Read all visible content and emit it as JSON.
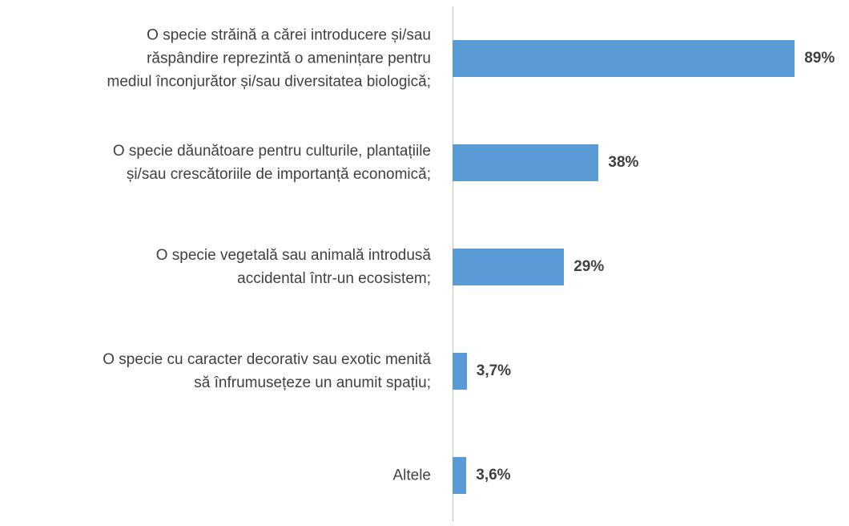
{
  "chart_data": {
    "type": "hbar",
    "categories": [
      "O specie străină a cărei introducere și/sau\nrăspândire reprezintă o amenințare pentru\nmediul înconjurător și/sau diversitatea biologică;",
      "O specie dăunătoare pentru culturile, plantațiile\nși/sau crescătoriile de importanță economică;",
      "O specie vegetală sau animală introdusă\naccidental într-un ecosistem;",
      "O specie cu caracter decorativ sau exotic menită\nsă înfrumusețeze un anumit spațiu;",
      "Altele"
    ],
    "values": [
      89,
      38,
      29,
      3.7,
      3.6
    ],
    "value_labels": [
      "89%",
      "38%",
      "29%",
      "3,7%",
      "3,6%"
    ],
    "color": "#5b9bd5",
    "xlim": [
      0,
      100
    ]
  }
}
